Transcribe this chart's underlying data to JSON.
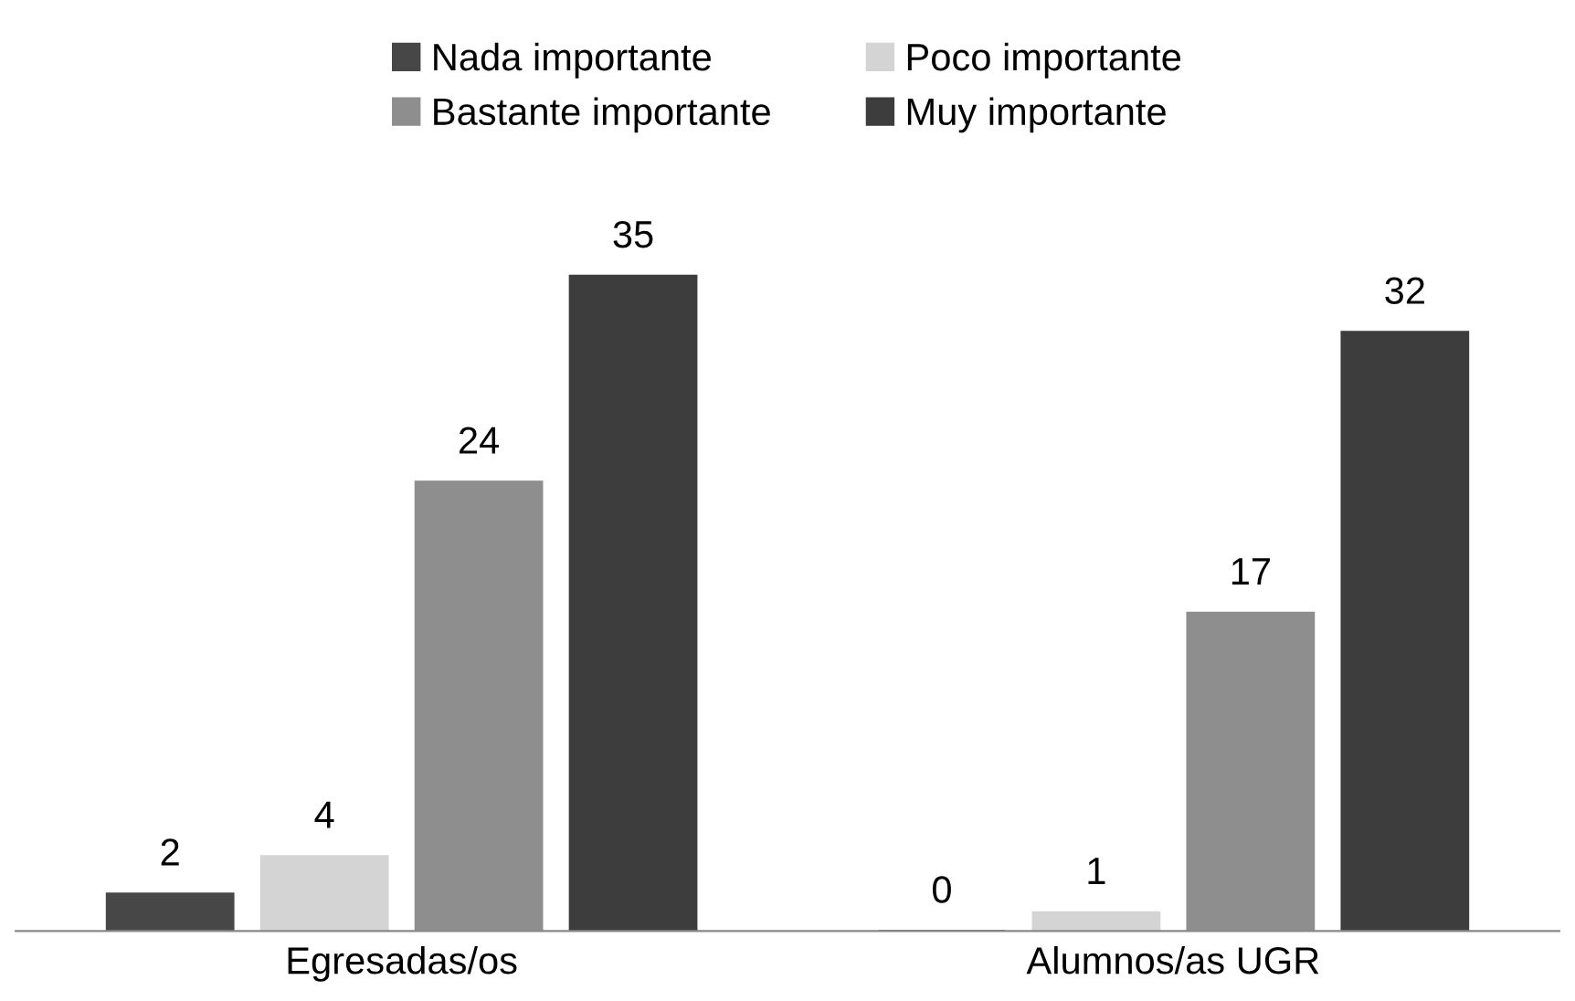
{
  "chart_data": {
    "type": "bar",
    "categories": [
      "Egresadas/os",
      "Alumnos/as UGR"
    ],
    "series": [
      {
        "name": "Nada importante",
        "color": "#474747",
        "values": [
          2,
          0
        ]
      },
      {
        "name": "Poco importante",
        "color": "#d4d4d4",
        "values": [
          4,
          1
        ]
      },
      {
        "name": "Bastante importante",
        "color": "#8e8e8e",
        "values": [
          24,
          17
        ]
      },
      {
        "name": "Muy importante",
        "color": "#3d3d3d",
        "values": [
          35,
          32
        ]
      }
    ],
    "data_labels": true,
    "legend": "top",
    "grid": false
  }
}
